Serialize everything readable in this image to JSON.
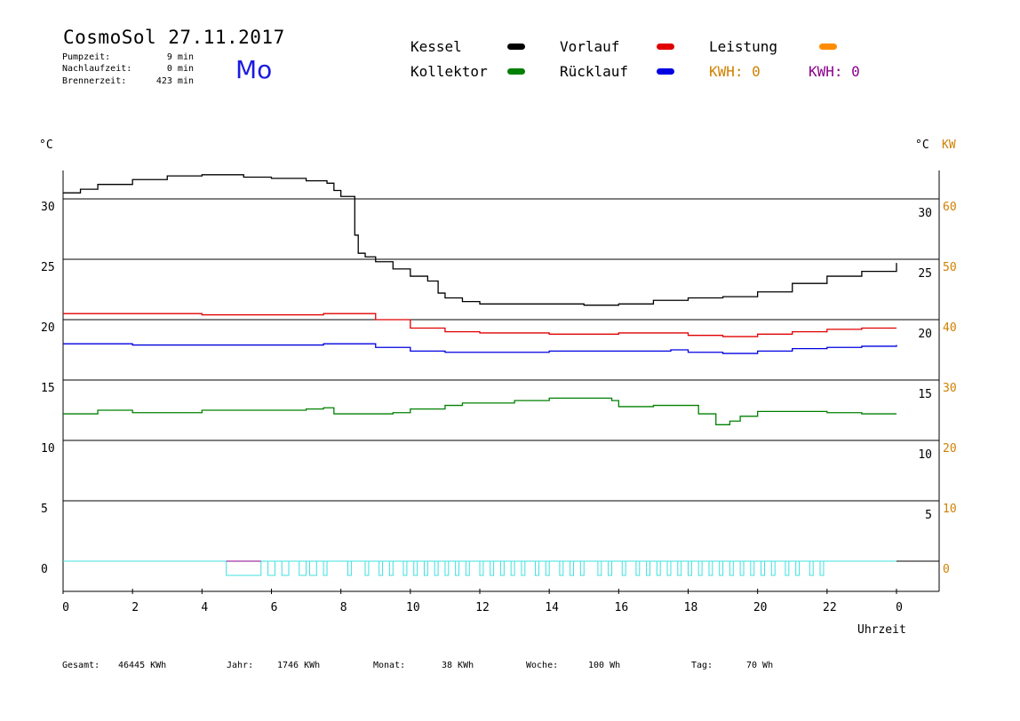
{
  "header": {
    "title": "CosmoSol 27.11.2017",
    "pump_label": "Pumpzeit:",
    "pump_value": "9 min",
    "nach_label": "Nachlaufzeit:",
    "nach_value": "0 min",
    "brenner_label": "Brennerzeit:",
    "brenner_value": "423 min",
    "day": "Mo"
  },
  "legend": {
    "kessel": "Kessel",
    "kollektor": "Kollektor",
    "vorlauf": "Vorlauf",
    "ruecklauf": "Rücklauf",
    "leistung": "Leistung",
    "kwh_orange": "KWH: 0",
    "kwh_purple": "KWH: 0"
  },
  "colors": {
    "kessel": "#000000",
    "kollektor": "#008000",
    "vorlauf": "#e00000",
    "ruecklauf": "#0000e0",
    "leistung": "#ff8c00",
    "kwh_purple": "#8b008b",
    "pump": "#40e0e0",
    "kw_axis": "#d08000"
  },
  "footer": {
    "gesamt_label": "Gesamt:",
    "gesamt_value": "46445 KWh",
    "jahr_label": "Jahr:",
    "jahr_value": "1746 KWh",
    "monat_label": "Monat:",
    "monat_value": "38 KWh",
    "woche_label": "Woche:",
    "woche_value": "100 Wh",
    "tag_label": "Tag:",
    "tag_value": "70 Wh"
  },
  "chart_data": {
    "type": "line",
    "xlabel": "Uhrzeit",
    "ylabel_left": "°C",
    "ylabel_right": [
      "°C",
      "KW"
    ],
    "xlim": [
      0,
      24
    ],
    "ylim": [
      -2.5,
      32.5
    ],
    "x_ticks": [
      "0",
      "2",
      "4",
      "6",
      "8",
      "10",
      "12",
      "14",
      "16",
      "18",
      "20",
      "22",
      "0"
    ],
    "y_ticks_left": [
      "0",
      "5",
      "10",
      "15",
      "20",
      "25",
      "30"
    ],
    "y_ticks_right_c": [
      "5",
      "10",
      "15",
      "20",
      "25",
      "30"
    ],
    "y_ticks_right_kw": [
      "0",
      "10",
      "20",
      "30",
      "40",
      "50",
      "60"
    ],
    "grid_y": true,
    "series": [
      {
        "name": "Kessel",
        "color": "#000000",
        "x": [
          0,
          0.5,
          1,
          2,
          3,
          4,
          4.5,
          5,
          5.2,
          6,
          7,
          7.6,
          7.8,
          8,
          8.3,
          8.4,
          8.5,
          8.7,
          9,
          9.5,
          10,
          10.5,
          10.8,
          11,
          11.5,
          12,
          13,
          14,
          15,
          16,
          17,
          18,
          19,
          20,
          21,
          22,
          23,
          24
        ],
        "y": [
          30.5,
          30.8,
          31.2,
          31.6,
          31.9,
          32.0,
          32.0,
          32.0,
          31.8,
          31.7,
          31.5,
          31.3,
          30.7,
          30.2,
          30.2,
          27.0,
          25.5,
          25.2,
          24.8,
          24.2,
          23.6,
          23.2,
          22.2,
          21.8,
          21.5,
          21.3,
          21.3,
          21.3,
          21.2,
          21.3,
          21.6,
          21.8,
          21.9,
          22.3,
          23.0,
          23.6,
          24.0,
          24.7
        ]
      },
      {
        "name": "Vorlauf",
        "color": "#e00000",
        "x": [
          0,
          2,
          4,
          6,
          7.5,
          8,
          9,
          10,
          11,
          12,
          14,
          16,
          17.5,
          18,
          19,
          20,
          21,
          22,
          23,
          24
        ],
        "y": [
          20.5,
          20.5,
          20.4,
          20.4,
          20.5,
          20.5,
          20.0,
          19.3,
          19.0,
          18.9,
          18.8,
          18.9,
          18.9,
          18.7,
          18.6,
          18.8,
          19.0,
          19.2,
          19.3,
          19.3
        ]
      },
      {
        "name": "Rücklauf",
        "color": "#0000e0",
        "x": [
          0,
          2,
          4,
          6,
          7.5,
          8,
          9,
          10,
          11,
          12,
          14,
          16,
          17.5,
          18,
          19,
          20,
          21,
          22,
          23,
          24
        ],
        "y": [
          18.0,
          17.9,
          17.9,
          17.9,
          18.0,
          18.0,
          17.7,
          17.4,
          17.3,
          17.3,
          17.4,
          17.4,
          17.5,
          17.3,
          17.2,
          17.4,
          17.6,
          17.7,
          17.8,
          17.9
        ]
      },
      {
        "name": "Kollektor",
        "color": "#008000",
        "x": [
          0,
          1,
          2,
          3,
          4,
          5,
          6,
          7,
          7.5,
          7.8,
          8,
          9,
          9.5,
          10,
          11,
          11.5,
          12,
          13,
          14,
          15,
          15.8,
          16,
          16.5,
          17,
          17.9,
          18.3,
          18.8,
          19.2,
          19.5,
          20,
          21,
          22,
          23,
          24
        ],
        "y": [
          12.2,
          12.5,
          12.3,
          12.3,
          12.5,
          12.5,
          12.5,
          12.6,
          12.7,
          12.2,
          12.2,
          12.2,
          12.3,
          12.6,
          12.9,
          13.1,
          13.1,
          13.3,
          13.5,
          13.5,
          13.3,
          12.8,
          12.8,
          12.9,
          12.9,
          12.2,
          11.3,
          11.6,
          12.0,
          12.4,
          12.4,
          12.3,
          12.2,
          12.2
        ]
      }
    ],
    "pump_periods": [
      [
        4.7,
        5.7
      ],
      [
        5.9,
        6.1
      ],
      [
        6.3,
        6.5
      ],
      [
        6.8,
        7.0
      ],
      [
        7.1,
        7.3
      ],
      [
        7.5,
        7.6
      ],
      [
        8.2,
        8.3
      ],
      [
        8.7,
        8.8
      ],
      [
        9.1,
        9.2
      ],
      [
        9.4,
        9.5
      ],
      [
        9.8,
        9.9
      ],
      [
        10.1,
        10.2
      ],
      [
        10.4,
        10.5
      ],
      [
        10.7,
        10.8
      ],
      [
        11.0,
        11.1
      ],
      [
        11.3,
        11.4
      ],
      [
        11.6,
        11.7
      ],
      [
        12.0,
        12.1
      ],
      [
        12.3,
        12.4
      ],
      [
        12.6,
        12.7
      ],
      [
        12.9,
        13.0
      ],
      [
        13.2,
        13.3
      ],
      [
        13.6,
        13.7
      ],
      [
        13.9,
        14.0
      ],
      [
        14.3,
        14.4
      ],
      [
        14.6,
        14.7
      ],
      [
        14.9,
        15.0
      ],
      [
        15.4,
        15.5
      ],
      [
        15.7,
        15.8
      ],
      [
        16.1,
        16.2
      ],
      [
        16.5,
        16.6
      ],
      [
        16.8,
        16.9
      ],
      [
        17.1,
        17.2
      ],
      [
        17.4,
        17.5
      ],
      [
        17.7,
        17.8
      ],
      [
        18.0,
        18.1
      ],
      [
        18.3,
        18.4
      ],
      [
        18.6,
        18.7
      ],
      [
        18.9,
        19.0
      ],
      [
        19.2,
        19.3
      ],
      [
        19.5,
        19.6
      ],
      [
        19.8,
        19.9
      ],
      [
        20.1,
        20.2
      ],
      [
        20.4,
        20.5
      ],
      [
        20.8,
        20.9
      ],
      [
        21.1,
        21.2
      ],
      [
        21.5,
        21.6
      ],
      [
        21.8,
        21.9
      ]
    ]
  }
}
